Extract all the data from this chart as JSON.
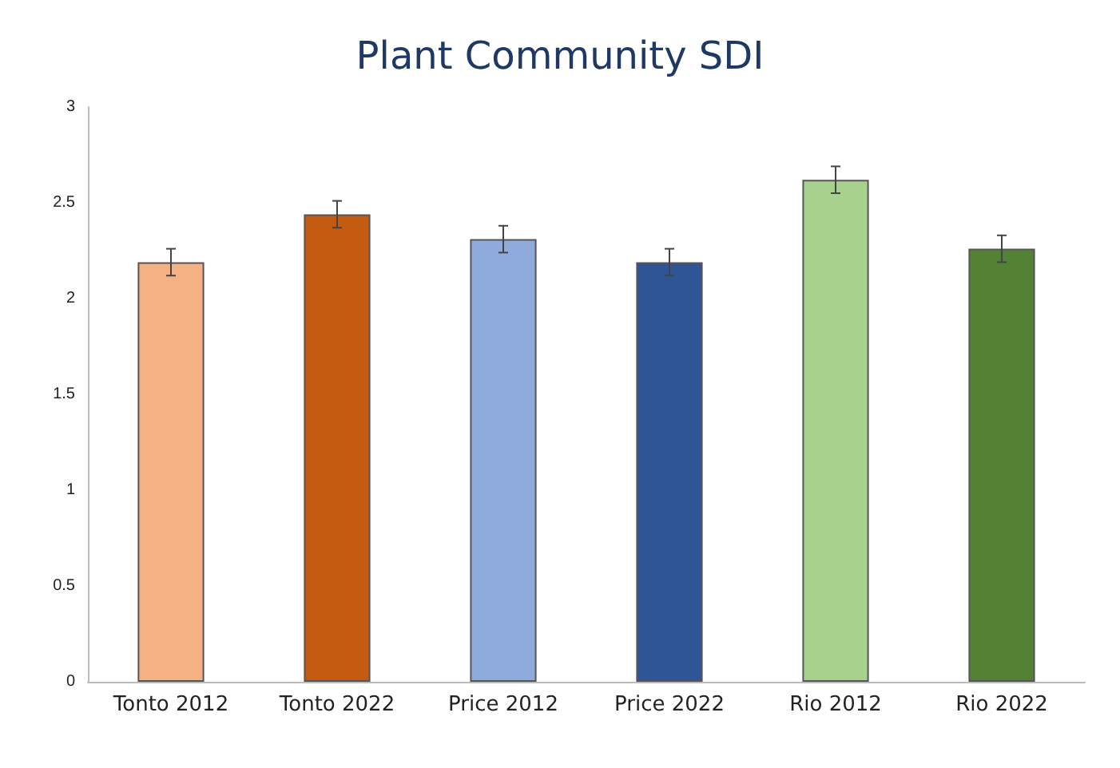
{
  "chart_data": {
    "type": "bar",
    "title": "Plant Community SDI",
    "categories": [
      "Tonto 2012",
      "Tonto 2022",
      "Price 2012",
      "Price 2022",
      "Rio 2012",
      "Rio 2022"
    ],
    "values": [
      2.19,
      2.44,
      2.31,
      2.19,
      2.62,
      2.26
    ],
    "errors": [
      0.07,
      0.07,
      0.07,
      0.07,
      0.07,
      0.07
    ],
    "colors": [
      "#f4b183",
      "#c55a11",
      "#8faadc",
      "#2f5597",
      "#a9d18e",
      "#548235"
    ],
    "ylim": [
      0,
      3
    ],
    "yticks": [
      0,
      0.5,
      1,
      1.5,
      2,
      2.5,
      3
    ],
    "grid": false
  }
}
